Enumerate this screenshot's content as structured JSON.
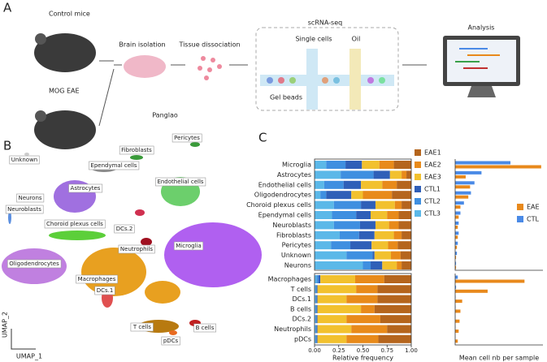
{
  "panels": {
    "a": "A",
    "b": "B",
    "c": "C"
  },
  "diagram": {
    "control": "Control mice",
    "eae": "MOG EAE",
    "brain": "Brain isolation",
    "tissue": "Tissue dissociation",
    "scrna": "scRNA-seq",
    "single": "Single cells",
    "oil": "Oil",
    "beads": "Gel beads",
    "analysis": "Analysis",
    "panglao": "Panglao"
  },
  "umap": {
    "x_label": "UMAP_1",
    "y_label": "UMAP_2",
    "clusters": [
      "Pericytes",
      "Fibroblasts",
      "Unknown",
      "Ependymal cells",
      "Endothelial cells",
      "Astrocytes",
      "Neurons",
      "Neuroblasts",
      "Choroid plexus cells",
      "DCs.2",
      "Neutrophils",
      "Microglia",
      "Oligodendrocytes",
      "Macrophages",
      "DCs.1",
      "B cells",
      "T cells",
      "pDCs"
    ]
  },
  "chart_data": [
    {
      "type": "stacked_bar",
      "xlabel": "Relative frequency",
      "categories": [
        "Microglia",
        "Astrocytes",
        "Endothelial cells",
        "Oligodendrocytes",
        "Choroid plexus cells",
        "Ependymal cells",
        "Neuroblasts",
        "Fibroblasts",
        "Pericytes",
        "Unknown",
        "Neurons",
        "Macrophages",
        "T cells",
        "DCs.1",
        "B cells",
        "DCs.2",
        "Neutrophils",
        "pDCs"
      ],
      "series": [
        {
          "name": "EAE1",
          "color": "#b5651d",
          "values": [
            0.18,
            0.05,
            0.15,
            0.2,
            0.1,
            0.13,
            0.13,
            0.1,
            0.14,
            0.11,
            0.1,
            0.28,
            0.35,
            0.35,
            0.38,
            0.32,
            0.25,
            0.34
          ]
        },
        {
          "name": "EAE2",
          "color": "#e88a1a",
          "values": [
            0.15,
            0.05,
            0.15,
            0.3,
            0.07,
            0.12,
            0.1,
            0.08,
            0.1,
            0.1,
            0.05,
            0.3,
            0.22,
            0.32,
            0.14,
            0.35,
            0.37,
            0.33
          ]
        },
        {
          "name": "EAE3",
          "color": "#f2c12e",
          "values": [
            0.18,
            0.12,
            0.22,
            0.12,
            0.2,
            0.17,
            0.14,
            0.2,
            0.17,
            0.17,
            0.15,
            0.36,
            0.4,
            0.3,
            0.45,
            0.3,
            0.35,
            0.3
          ]
        },
        {
          "name": "CTL1",
          "color": "#2f5fb8",
          "values": [
            0.17,
            0.17,
            0.18,
            0.26,
            0.15,
            0.15,
            0.16,
            0.16,
            0.22,
            0.02,
            0.12,
            0.02,
            0.01,
            0.01,
            0.01,
            0.01,
            0.01,
            0.01
          ]
        },
        {
          "name": "CTL2",
          "color": "#3f8fe0",
          "values": [
            0.2,
            0.34,
            0.2,
            0.06,
            0.28,
            0.25,
            0.27,
            0.2,
            0.2,
            0.27,
            0.08,
            0.02,
            0.01,
            0.01,
            0.01,
            0.01,
            0.01,
            0.01
          ]
        },
        {
          "name": "CTL3",
          "color": "#5bb8e8",
          "values": [
            0.12,
            0.27,
            0.1,
            0.06,
            0.2,
            0.18,
            0.2,
            0.26,
            0.17,
            0.33,
            0.5,
            0.02,
            0.01,
            0.01,
            0.01,
            0.01,
            0.01,
            0.01
          ]
        }
      ],
      "xlim": [
        0,
        1
      ],
      "xticks": [
        {
          "value": 0,
          "label": "0.00"
        },
        {
          "value": 0.25,
          "label": "0.25"
        },
        {
          "value": 0.5,
          "label": "0.50"
        },
        {
          "value": 0.75,
          "label": "0.75"
        },
        {
          "value": 1,
          "label": "1.00"
        }
      ]
    },
    {
      "type": "bar",
      "xlabel": "Mean cell nb per sample",
      "xlim": [
        0,
        100
      ],
      "series": [
        {
          "name": "EAE",
          "color": "#e8891c",
          "values": [
            98,
            12,
            17,
            15,
            6,
            4,
            3,
            3,
            2,
            1,
            1,
            79,
            37,
            8,
            6,
            5,
            4,
            3
          ]
        },
        {
          "name": "CTL",
          "color": "#4a8ae6",
          "values": [
            63,
            30,
            22,
            18,
            10,
            6,
            4,
            4,
            3,
            2,
            1,
            3,
            1,
            0.5,
            0.5,
            0.3,
            0.3,
            0.2
          ]
        }
      ]
    }
  ]
}
